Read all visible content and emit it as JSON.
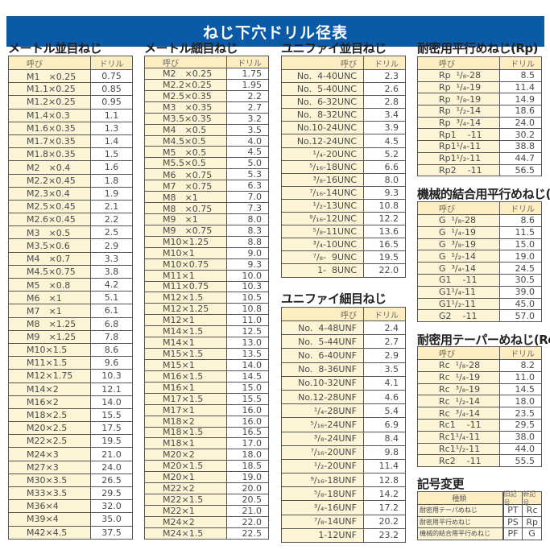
{
  "title": "ねじ下穴ドリル径表",
  "header": {
    "name": "呼び",
    "drill": "ドリル"
  },
  "tables": [
    {
      "id": "metric-coarse",
      "title": "メートル並目ねじ",
      "rows": [
        [
          "M1　×0.25",
          "0.75"
        ],
        [
          "M1.1×0.25",
          "0.85"
        ],
        [
          "M1.2×0.25",
          "0.95"
        ],
        [
          "M1.4×0.3",
          "1.1"
        ],
        [
          "M1.6×0.35",
          "1.3"
        ],
        [
          "M1.7×0.35",
          "1.4"
        ],
        [
          "M1.8×0.35",
          "1.5"
        ],
        [
          "M2　×0.4",
          "1.6"
        ],
        [
          "M2.2×0.45",
          "1.8"
        ],
        [
          "M2.3×0.4",
          "1.9"
        ],
        [
          "M2.5×0.45",
          "2.1"
        ],
        [
          "M2.6×0.45",
          "2.2"
        ],
        [
          "M3　×0.5",
          "2.5"
        ],
        [
          "M3.5×0.6",
          "2.9"
        ],
        [
          "M4　×0.7",
          "3.3"
        ],
        [
          "M4.5×0.75",
          "3.8"
        ],
        [
          "M5　×0.8",
          "4.2"
        ],
        [
          "M6　×1",
          "5.1"
        ],
        [
          "M7　×1",
          "6.1"
        ],
        [
          "M8　×1.25",
          "6.8"
        ],
        [
          "M9　×1.25",
          "7.8"
        ],
        [
          "M10×1.5",
          "8.6"
        ],
        [
          "M11×1.5",
          "9.6"
        ],
        [
          "M12×1.75",
          "10.3"
        ],
        [
          "M14×2",
          "12.1"
        ],
        [
          "M16×2",
          "14.0"
        ],
        [
          "M18×2.5",
          "15.5"
        ],
        [
          "M20×2.5",
          "17.5"
        ],
        [
          "M22×2.5",
          "19.5"
        ],
        [
          "M24×3",
          "21.0"
        ],
        [
          "M27×3",
          "24.0"
        ],
        [
          "M30×3.5",
          "26.5"
        ],
        [
          "M33×3.5",
          "29.5"
        ],
        [
          "M36×4",
          "32.0"
        ],
        [
          "M39×4",
          "35.0"
        ],
        [
          "M42×4.5",
          "37.5"
        ]
      ]
    },
    {
      "id": "metric-fine",
      "title": "メートル細目ねじ",
      "rows": [
        [
          "M2　×0.25",
          "1.75"
        ],
        [
          "M2.2×0.25",
          "1.95"
        ],
        [
          "M2.5×0.35",
          "2.2"
        ],
        [
          "M3　×0.35",
          "2.7"
        ],
        [
          "M3.5×0.35",
          "3.2"
        ],
        [
          "M4　×0.5",
          "3.5"
        ],
        [
          "M4.5×0.5",
          "4.0"
        ],
        [
          "M5　×0.5",
          "4.5"
        ],
        [
          "M5.5×0.5",
          "5.0"
        ],
        [
          "M6　×0.75",
          "5.3"
        ],
        [
          "M7　×0.75",
          "6.3"
        ],
        [
          "M8　×1",
          "7.0"
        ],
        [
          "M8　×0.75",
          "7.3"
        ],
        [
          "M9　×1",
          "8.0"
        ],
        [
          "M9　×0.75",
          "8.3"
        ],
        [
          "M10×1.25",
          "8.8"
        ],
        [
          "M10×1",
          "9.0"
        ],
        [
          "M10×0.75",
          "9.3"
        ],
        [
          "M11×1",
          "10.0"
        ],
        [
          "M11×0.75",
          "10.3"
        ],
        [
          "M12×1.5",
          "10.5"
        ],
        [
          "M12×1.25",
          "10.8"
        ],
        [
          "M12×1",
          "11.0"
        ],
        [
          "M14×1.5",
          "12.5"
        ],
        [
          "M14×1",
          "13.0"
        ],
        [
          "M15×1.5",
          "13.5"
        ],
        [
          "M15×1",
          "14.0"
        ],
        [
          "M16×1.5",
          "14.5"
        ],
        [
          "M16×1",
          "15.0"
        ],
        [
          "M17×1.5",
          "15.5"
        ],
        [
          "M17×1",
          "16.0"
        ],
        [
          "M18×2",
          "16.0"
        ],
        [
          "M18×1.5",
          "16.5"
        ],
        [
          "M18×1",
          "17.0"
        ],
        [
          "M20×2",
          "18.0"
        ],
        [
          "M20×1.5",
          "18.5"
        ],
        [
          "M20×1",
          "19.0"
        ],
        [
          "M22×2",
          "20.0"
        ],
        [
          "M22×1.5",
          "20.5"
        ],
        [
          "M22×1",
          "21.0"
        ],
        [
          "M24×2",
          "22.0"
        ],
        [
          "M24×1.5",
          "22.5"
        ]
      ]
    },
    {
      "id": "unc",
      "title": "ユニファイ並目ねじ",
      "rows": [
        [
          "No.  4-40UNC",
          "2.3"
        ],
        [
          "No.  5-40UNC",
          "2.6"
        ],
        [
          "No.  6-32UNC",
          "2.8"
        ],
        [
          "No.  8-32UNC",
          "3.4"
        ],
        [
          "No.10-24UNC",
          "3.9"
        ],
        [
          "No.12-24UNC",
          "4.5"
        ],
        [
          "¹/₄-20UNC",
          "5.2"
        ],
        [
          "⁵/₁₆-18UNC",
          "6.6"
        ],
        [
          "³/₈-16UNC",
          "8.0"
        ],
        [
          "⁷/₁₆-14UNC",
          "9.3"
        ],
        [
          "¹/₂-13UNC",
          "10.8"
        ],
        [
          "⁹/₁₆-12UNC",
          "12.2"
        ],
        [
          "⁵/₈-11UNC",
          "13.6"
        ],
        [
          "³/₄-10UNC",
          "16.5"
        ],
        [
          "⁷/₈-  9UNC",
          "19.5"
        ],
        [
          "1-  8UNC",
          "22.0"
        ]
      ]
    },
    {
      "id": "unf",
      "title": "ユニファイ細目ねじ",
      "rows": [
        [
          "No.  4-48UNF",
          "2.4"
        ],
        [
          "No.  5-44UNF",
          "2.7"
        ],
        [
          "No.  6-40UNF",
          "2.9"
        ],
        [
          "No.  8-36UNF",
          "3.5"
        ],
        [
          "No.10-32UNF",
          "4.1"
        ],
        [
          "No.12-28UNF",
          "4.6"
        ],
        [
          "¹/₄-28UNF",
          "5.4"
        ],
        [
          "⁵/₁₆-24UNF",
          "6.9"
        ],
        [
          "³/₈-24UNF",
          "8.4"
        ],
        [
          "⁷/₁₆-20UNF",
          "9.8"
        ],
        [
          "¹/₂-20UNF",
          "11.4"
        ],
        [
          "⁹/₁₆-18UNF",
          "12.8"
        ],
        [
          "⁵/₈-18UNF",
          "14.2"
        ],
        [
          "³/₄-16UNF",
          "17.2"
        ],
        [
          "⁷/₈-14UNF",
          "20.2"
        ],
        [
          "1-12UNF",
          "23.2"
        ]
      ]
    },
    {
      "id": "rp",
      "title": "耐密用平行めねじ(Rp)",
      "rows": [
        [
          "Rp  ¹/₈-28",
          "8.5"
        ],
        [
          "Rp  ¹/₄-19",
          "11.4"
        ],
        [
          "Rp  ³/₈-19",
          "14.9"
        ],
        [
          "Rp  ¹/₂-14",
          "18.6"
        ],
        [
          "Rp  ³/₄-14",
          "24.0"
        ],
        [
          "Rp1    -11",
          "30.2"
        ],
        [
          "Rp1¹/₄-11",
          "38.8"
        ],
        [
          "Rp1¹/₂-11",
          "44.7"
        ],
        [
          "Rp2    -11",
          "56.5"
        ]
      ]
    },
    {
      "id": "g",
      "title": "機械的結合用平行めねじ(G)",
      "rows": [
        [
          "G  ¹/₈-28",
          "8.6"
        ],
        [
          "G  ¹/₄-19",
          "11.5"
        ],
        [
          "G  ³/₈-19",
          "15.0"
        ],
        [
          "G  ¹/₂-14",
          "19.0"
        ],
        [
          "G  ³/₄-14",
          "24.5"
        ],
        [
          "G1    -11",
          "30.5"
        ],
        [
          "G1¹/₄-11",
          "39.0"
        ],
        [
          "G1¹/₂-11",
          "45.0"
        ],
        [
          "G2    -11",
          "57.0"
        ]
      ]
    },
    {
      "id": "rc",
      "title": "耐密用テーパーめねじ(Rc)",
      "rows": [
        [
          "Rc  ¹/₈-28",
          "8.2"
        ],
        [
          "Rc  ¹/₄-19",
          "11.0"
        ],
        [
          "Rc  ³/₈-19",
          "14.5"
        ],
        [
          "Rc  ¹/₂-14",
          "18.0"
        ],
        [
          "Rc  ³/₄-14",
          "23.5"
        ],
        [
          "Rc1    -11",
          "29.5"
        ],
        [
          "Rc1¹/₄-11",
          "38.0"
        ],
        [
          "Rc1¹/₂-11",
          "44.0"
        ],
        [
          "Rc2    -11",
          "55.5"
        ]
      ]
    }
  ],
  "symbol_change": {
    "title": "記号変更",
    "header": [
      "種類",
      "旧記号",
      "新記号"
    ],
    "rows": [
      [
        "耐密用テーパめねじ",
        "PT",
        "Rc"
      ],
      [
        "耐密用平行めねじ",
        "PS",
        "Rp"
      ],
      [
        "機械的結合用平行めねじ",
        "PF",
        "G"
      ]
    ]
  },
  "colors": {
    "banner": "#0a5aa8",
    "name_cell": "#fdf4d6",
    "header_cell": "#fdeec2"
  }
}
